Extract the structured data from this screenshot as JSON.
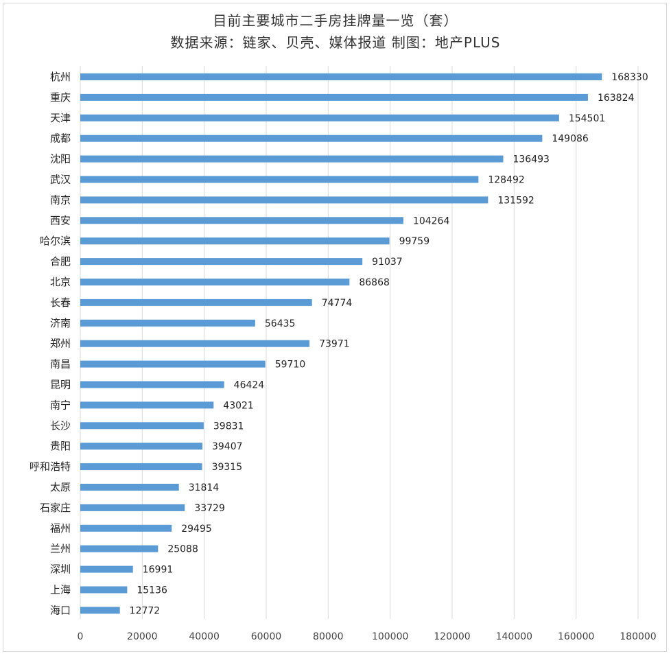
{
  "chart_data": {
    "type": "bar",
    "orientation": "horizontal",
    "title": "目前主要城市二手房挂牌量一览（套）",
    "subtitle": "数据来源：链家、贝壳、媒体报道 制图：地产PLUS",
    "categories": [
      "杭州",
      "重庆",
      "天津",
      "成都",
      "沈阳",
      "武汉",
      "南京",
      "西安",
      "哈尔滨",
      "合肥",
      "北京",
      "长春",
      "济南",
      "郑州",
      "南昌",
      "昆明",
      "南宁",
      "长沙",
      "贵阳",
      "呼和浩特",
      "太原",
      "石家庄",
      "福州",
      "兰州",
      "深圳",
      "上海",
      "海口"
    ],
    "values": [
      168330,
      163824,
      154501,
      149086,
      136493,
      128492,
      131592,
      104264,
      99759,
      91037,
      86868,
      74774,
      56435,
      73971,
      59710,
      46424,
      43021,
      39831,
      39407,
      39315,
      31814,
      33729,
      29495,
      25088,
      16991,
      15136,
      12772
    ],
    "xticks": [
      0,
      20000,
      40000,
      60000,
      80000,
      100000,
      120000,
      140000,
      160000,
      180000
    ],
    "xlim": [
      0,
      180000
    ],
    "grid": "vertical",
    "data_labels": true,
    "legend": "none",
    "colors": {
      "bar": "#5b9bd5"
    }
  }
}
